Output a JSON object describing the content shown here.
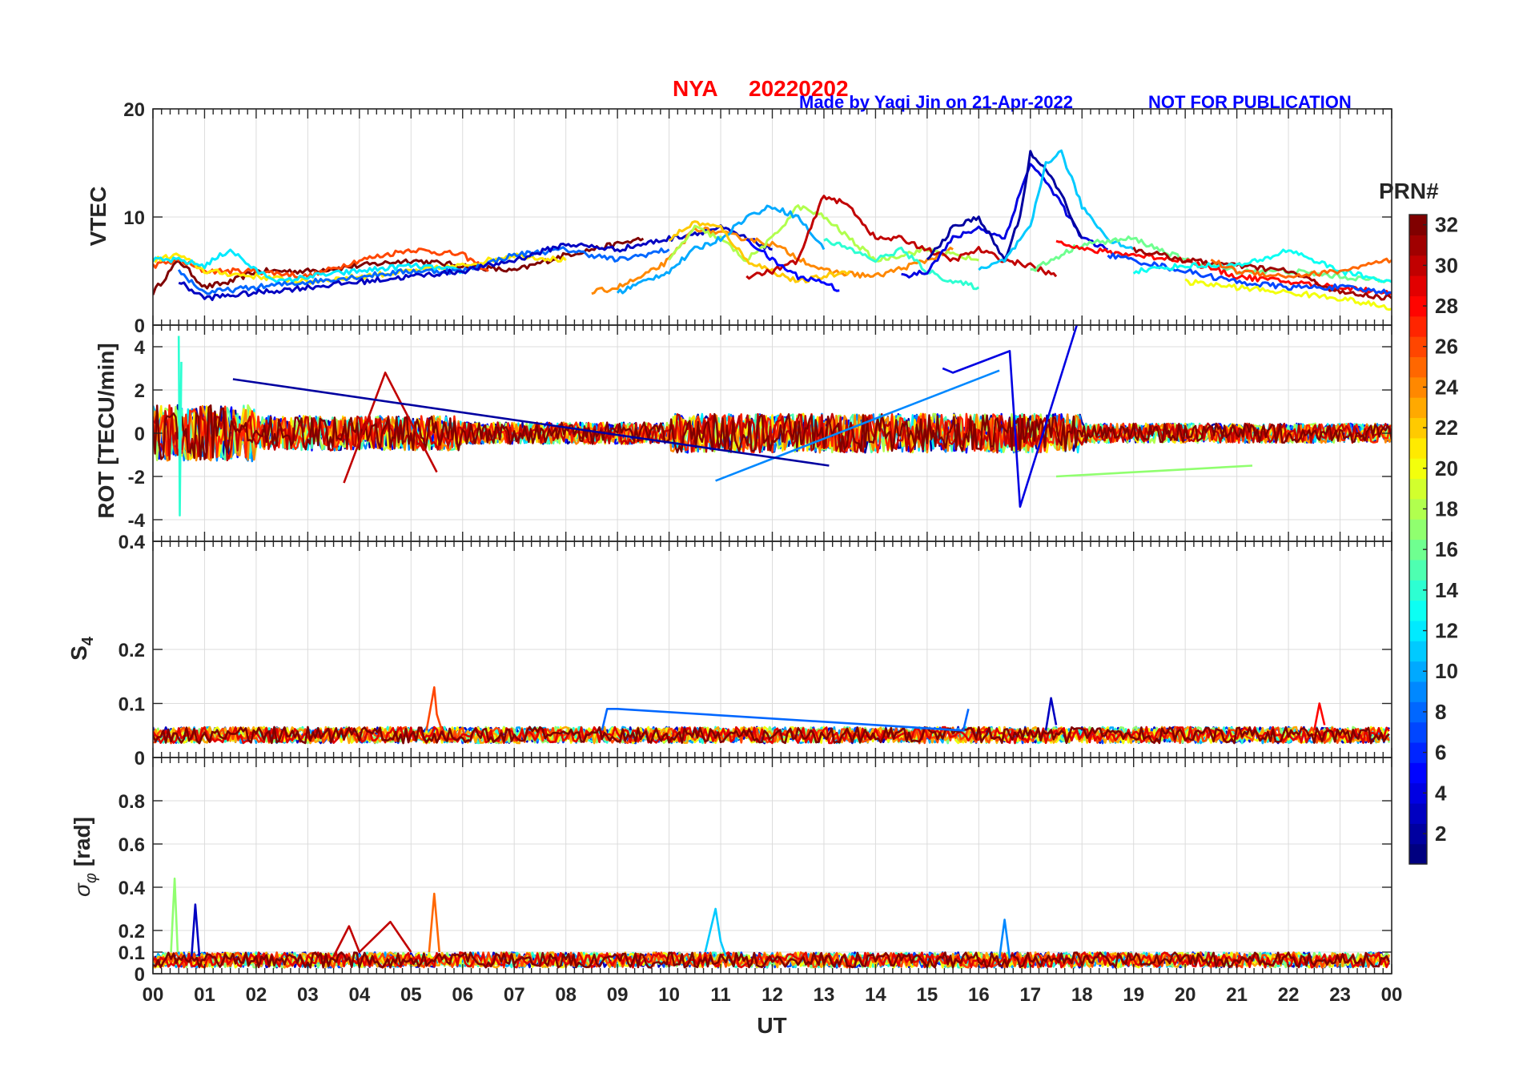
{
  "header": {
    "station": "NYA",
    "date": "20220202",
    "credit": "Made by Yaqi Jin on 21-Apr-2022",
    "notice": "NOT FOR PUBLICATION"
  },
  "colorbar": {
    "title": "PRN#",
    "ticks": [
      "2",
      "4",
      "6",
      "8",
      "10",
      "12",
      "14",
      "16",
      "18",
      "20",
      "22",
      "24",
      "26",
      "28",
      "30",
      "32"
    ],
    "tick_values": [
      2,
      4,
      6,
      8,
      10,
      12,
      14,
      16,
      18,
      20,
      22,
      24,
      26,
      28,
      30,
      32
    ],
    "range": [
      1,
      32
    ],
    "colormap": "jet"
  },
  "chart_data": [
    {
      "type": "line",
      "id": "vtec",
      "ylabel": "VTEC",
      "ylim": [
        0,
        20
      ],
      "ytick_labels": [
        "0",
        "10",
        "20"
      ],
      "ytick_values": [
        0,
        10,
        20
      ],
      "grid": true,
      "series": [
        {
          "name": "PRN 32",
          "prn": 32,
          "x": [
            0,
            0.5,
            1,
            1.5,
            2,
            3,
            4,
            5,
            6,
            7,
            8,
            9,
            9.5
          ],
          "values": [
            3,
            6,
            3.5,
            4,
            5,
            5,
            5.5,
            6,
            5.5,
            5,
            6.5,
            7.5,
            8
          ]
        },
        {
          "name": "PRN 26",
          "prn": 26,
          "x": [
            0,
            0.5,
            1,
            2,
            3,
            4,
            5,
            6,
            6.5
          ],
          "values": [
            5.5,
            6,
            5,
            5,
            4.5,
            6,
            7,
            6.5,
            5
          ]
        },
        {
          "name": "PRN 21",
          "prn": 21,
          "x": [
            0,
            0.5,
            1,
            2,
            3,
            4,
            5,
            6,
            7,
            8
          ],
          "values": [
            6,
            6.5,
            5,
            4.5,
            4,
            4.5,
            5,
            5.5,
            6.5,
            6
          ]
        },
        {
          "name": "PRN 12",
          "prn": 12,
          "x": [
            0,
            0.5,
            1,
            1.5,
            2,
            2.5,
            3,
            4,
            5,
            6
          ],
          "values": [
            6,
            6,
            5.5,
            7,
            5,
            4,
            4.5,
            5,
            5.5,
            5
          ]
        },
        {
          "name": "PRN 8",
          "prn": 8,
          "x": [
            0.5,
            1,
            2,
            3,
            4,
            5,
            6,
            7,
            8,
            9,
            10
          ],
          "values": [
            5,
            3,
            3.5,
            4,
            4.5,
            5,
            5,
            6.5,
            7,
            6,
            7
          ]
        },
        {
          "name": "PRN 3",
          "prn": 3,
          "x": [
            0.5,
            1,
            2,
            3,
            4,
            5,
            6,
            7,
            8,
            9,
            10,
            11,
            12
          ],
          "values": [
            4,
            2.5,
            3,
            3.5,
            4,
            4.5,
            5,
            6,
            7.5,
            7,
            8,
            9,
            7
          ]
        },
        {
          "name": "PRN 24",
          "prn": 24,
          "x": [
            8.5,
            9,
            9.5,
            10,
            10.5,
            11,
            12,
            13,
            14,
            15,
            15.5
          ],
          "values": [
            3,
            3.5,
            4.5,
            6,
            9,
            8.5,
            7.5,
            5,
            4.5,
            6,
            7
          ]
        },
        {
          "name": "PRN 18",
          "prn": 18,
          "x": [
            10,
            10.5,
            11,
            11.5,
            12,
            12.5,
            13,
            13.5,
            14,
            15,
            16
          ],
          "values": [
            6,
            9,
            8,
            6,
            8,
            11,
            10,
            8,
            6,
            7,
            6
          ]
        },
        {
          "name": "PRN 10",
          "prn": 10,
          "x": [
            9,
            9.5,
            10,
            10.5,
            11,
            11.5,
            12,
            12.5,
            13
          ],
          "values": [
            3,
            4,
            5,
            7,
            8,
            10,
            11,
            10,
            7
          ]
        },
        {
          "name": "PRN 22",
          "prn": 22,
          "x": [
            10,
            10.5,
            11,
            11.5,
            12,
            12.5,
            13,
            13.5
          ],
          "values": [
            8,
            9.5,
            9,
            6,
            5,
            4,
            4.5,
            5
          ]
        },
        {
          "name": "PRN 30",
          "prn": 30,
          "x": [
            11.5,
            12,
            12.5,
            13,
            13.5,
            14,
            14.5,
            15,
            15.5,
            16,
            16.5,
            17,
            17.5
          ],
          "values": [
            4.5,
            5,
            6,
            12,
            11,
            8,
            8,
            7,
            6,
            7,
            6,
            5.5,
            4.5
          ]
        },
        {
          "name": "PRN 5",
          "prn": 5,
          "x": [
            11.5,
            12,
            12.5,
            13,
            13.3
          ],
          "values": [
            8,
            6,
            4.5,
            4,
            3.2
          ]
        },
        {
          "name": "PRN 14",
          "prn": 14,
          "x": [
            13,
            13.5,
            14,
            14.5,
            15,
            15.5,
            16
          ],
          "values": [
            8,
            7,
            6,
            7,
            5,
            4,
            3.5
          ]
        },
        {
          "name": "PRN 4",
          "prn": 4,
          "x": [
            14.5,
            15,
            15.5,
            16,
            16.5,
            17,
            17.5,
            18,
            18.5
          ],
          "values": [
            4.5,
            5,
            8,
            9,
            8,
            15,
            12,
            8,
            7
          ]
        },
        {
          "name": "PRN 2",
          "prn": 2,
          "x": [
            15,
            15.5,
            16,
            16.5,
            16.8,
            17,
            17.5,
            18
          ],
          "values": [
            6,
            9,
            10,
            6,
            10,
            16,
            13,
            8
          ]
        },
        {
          "name": "PRN 11",
          "prn": 11,
          "x": [
            16,
            16.5,
            17,
            17.3,
            17.6,
            18,
            18.5,
            19
          ],
          "values": [
            5,
            6,
            9,
            15,
            16,
            11,
            8,
            7
          ]
        },
        {
          "name": "PRN 16",
          "prn": 16,
          "x": [
            17,
            18,
            19,
            20,
            21,
            22,
            23,
            24
          ],
          "values": [
            5,
            7.5,
            8,
            6,
            5,
            5,
            4.5,
            4
          ]
        },
        {
          "name": "PRN 28",
          "prn": 28,
          "x": [
            17.5,
            18,
            19,
            20,
            21,
            22,
            23,
            24
          ],
          "values": [
            8,
            7,
            6.5,
            6,
            4.5,
            4,
            3.5,
            3
          ]
        },
        {
          "name": "PRN 31",
          "prn": 31,
          "x": [
            19,
            20,
            21,
            22,
            23,
            24
          ],
          "values": [
            7,
            6,
            5.5,
            5,
            3,
            2.5
          ]
        },
        {
          "name": "PRN 7",
          "prn": 7,
          "x": [
            18.5,
            19,
            20,
            21,
            22,
            23,
            24
          ],
          "values": [
            6.5,
            6,
            5,
            4,
            3.5,
            3.5,
            3
          ]
        },
        {
          "name": "PRN 13",
          "prn": 13,
          "x": [
            19,
            20,
            21,
            21.5,
            22,
            23,
            24
          ],
          "values": [
            5,
            5.5,
            5.5,
            6,
            7,
            5,
            4
          ]
        },
        {
          "name": "PRN 20",
          "prn": 20,
          "x": [
            20,
            21,
            22,
            23,
            24
          ],
          "values": [
            4,
            3.5,
            3,
            2.5,
            1.5
          ]
        },
        {
          "name": "PRN 25",
          "prn": 25,
          "x": [
            20.5,
            21,
            22,
            23,
            24
          ],
          "values": [
            6,
            5,
            4.5,
            5,
            6
          ]
        }
      ]
    },
    {
      "type": "line",
      "id": "rot",
      "ylabel": "ROT [TECU/min]",
      "ylim": [
        -5,
        5
      ],
      "ytick_labels": [
        "-4",
        "-2",
        "0",
        "2",
        "4"
      ],
      "ytick_values": [
        -4,
        -2,
        0,
        2,
        4
      ],
      "grid": true,
      "noise_bands": [
        {
          "x_start": 0,
          "x_end": 2,
          "amplitude": 1.3
        },
        {
          "x_start": 2,
          "x_end": 6,
          "amplitude": 0.8
        },
        {
          "x_start": 6,
          "x_end": 10,
          "amplitude": 0.5
        },
        {
          "x_start": 10,
          "x_end": 12,
          "amplitude": 0.9
        },
        {
          "x_start": 12,
          "x_end": 18,
          "amplitude": 0.9
        },
        {
          "x_start": 18,
          "x_end": 24,
          "amplitude": 0.45
        }
      ],
      "series": [
        {
          "name": "PRN 14 spikes",
          "prn": 14,
          "x": [
            0.5,
            0.52,
            0.55
          ],
          "values": [
            4.5,
            -3.8,
            3.3
          ]
        },
        {
          "name": "PRN 30 spikes",
          "prn": 30,
          "x": [
            3.7,
            4.5,
            5.5
          ],
          "values": [
            -2.3,
            2.8,
            -1.8
          ]
        },
        {
          "name": "PRN 4 spikes",
          "prn": 4,
          "x": [
            15.3,
            15.5,
            16.6,
            16.8,
            17.9
          ],
          "values": [
            3,
            2.8,
            3.8,
            -3.4,
            5
          ]
        },
        {
          "name": "PRN 9 spikes",
          "prn": 9,
          "x": [
            10.9,
            16.4
          ],
          "values": [
            -2.2,
            2.9
          ]
        },
        {
          "name": "PRN 17 spikes",
          "prn": 17,
          "x": [
            17.5,
            21.3
          ],
          "values": [
            -2,
            -1.5
          ]
        },
        {
          "name": "PRN 2 spikes",
          "prn": 2,
          "x": [
            1.55,
            13.1
          ],
          "values": [
            2.5,
            -1.5
          ]
        }
      ]
    },
    {
      "type": "line",
      "id": "s4",
      "ylabel": "S4",
      "ylim": [
        0,
        0.4
      ],
      "ytick_labels": [
        "0",
        "0.1",
        "0.2",
        "0.4"
      ],
      "ytick_values": [
        0,
        0.1,
        0.2,
        0.4
      ],
      "grid": true,
      "baseline": 0.04,
      "noise_amplitude": 0.015,
      "series": [
        {
          "name": "PRN 26 peak",
          "prn": 26,
          "x": [
            5.3,
            5.45,
            5.5,
            5.6
          ],
          "values": [
            0.05,
            0.13,
            0.08,
            0.05
          ]
        },
        {
          "name": "PRN 8 bumps",
          "prn": 8,
          "x": [
            8.7,
            8.8,
            9,
            15.7,
            15.8
          ],
          "values": [
            0.05,
            0.09,
            0.09,
            0.05,
            0.09
          ]
        },
        {
          "name": "PRN 3 bumps",
          "prn": 3,
          "x": [
            17.3,
            17.4,
            17.5
          ],
          "values": [
            0.05,
            0.11,
            0.06
          ]
        },
        {
          "name": "PRN 28 bumps",
          "prn": 28,
          "x": [
            22.5,
            22.6,
            22.7
          ],
          "values": [
            0.05,
            0.1,
            0.06
          ]
        }
      ]
    },
    {
      "type": "line",
      "id": "sigma_phi",
      "ylabel": "σφ [rad]",
      "ylim": [
        0,
        1
      ],
      "ytick_labels": [
        "0",
        "0.1",
        "0.2",
        "0.4",
        "0.6",
        "0.8"
      ],
      "ytick_values": [
        0,
        0.1,
        0.2,
        0.4,
        0.6,
        0.8
      ],
      "grid": true,
      "baseline": 0.06,
      "noise_amplitude": 0.035,
      "series": [
        {
          "name": "PRN 17 spike",
          "prn": 17,
          "x": [
            0.35,
            0.42,
            0.48
          ],
          "values": [
            0.1,
            0.44,
            0.1
          ]
        },
        {
          "name": "PRN 3 spike",
          "prn": 3,
          "x": [
            0.75,
            0.82,
            0.9
          ],
          "values": [
            0.08,
            0.32,
            0.08
          ]
        },
        {
          "name": "PRN 25 spike",
          "prn": 25,
          "x": [
            5.35,
            5.45,
            5.55
          ],
          "values": [
            0.1,
            0.37,
            0.1
          ]
        },
        {
          "name": "PRN 30 bumps",
          "prn": 30,
          "x": [
            3.5,
            3.8,
            4,
            4.6,
            5
          ],
          "values": [
            0.08,
            0.22,
            0.1,
            0.24,
            0.1
          ]
        },
        {
          "name": "PRN 11 bumps",
          "prn": 11,
          "x": [
            10.7,
            10.9,
            11,
            11.1
          ],
          "values": [
            0.1,
            0.3,
            0.15,
            0.08
          ]
        },
        {
          "name": "PRN 9 bumps",
          "prn": 9,
          "x": [
            16.4,
            16.5,
            16.6
          ],
          "values": [
            0.07,
            0.25,
            0.07
          ]
        }
      ]
    }
  ],
  "xaxis": {
    "label": "UT",
    "range": [
      0,
      24
    ],
    "tick_labels": [
      "00",
      "01",
      "02",
      "03",
      "04",
      "05",
      "06",
      "07",
      "08",
      "09",
      "10",
      "11",
      "12",
      "13",
      "14",
      "15",
      "16",
      "17",
      "18",
      "19",
      "20",
      "21",
      "22",
      "23",
      "00"
    ]
  }
}
